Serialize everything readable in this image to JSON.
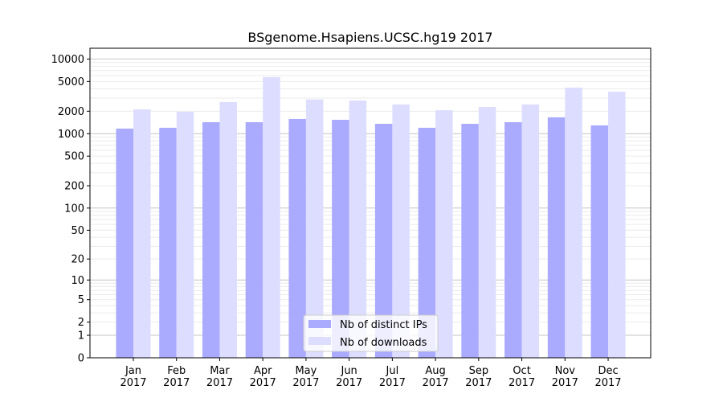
{
  "chart_data": {
    "type": "bar",
    "title": "BSgenome.Hsapiens.UCSC.hg19 2017",
    "xlabel": "",
    "ylabel": "",
    "yscale": "log10(1+y)",
    "ylim": [
      0,
      13000
    ],
    "yticks": [
      0,
      1,
      2,
      5,
      10,
      20,
      50,
      100,
      200,
      500,
      1000,
      2000,
      5000,
      10000
    ],
    "categories": [
      "Jan\n2017",
      "Feb\n2017",
      "Mar\n2017",
      "Apr\n2017",
      "May\n2017",
      "Jun\n2017",
      "Jul\n2017",
      "Aug\n2017",
      "Sep\n2017",
      "Oct\n2017",
      "Nov\n2017",
      "Dec\n2017"
    ],
    "series": [
      {
        "name": "Nb of distinct IPs",
        "color": "#aaaaff",
        "values": [
          1170,
          1200,
          1425,
          1425,
          1575,
          1535,
          1355,
          1200,
          1355,
          1425,
          1655,
          1290
        ]
      },
      {
        "name": "Nb of downloads",
        "color": "#ddddff",
        "values": [
          2120,
          1965,
          2650,
          5750,
          2875,
          2785,
          2460,
          2065,
          2280,
          2460,
          4140,
          3655
        ]
      }
    ],
    "grid": true,
    "legend_position": "bottom-center"
  }
}
